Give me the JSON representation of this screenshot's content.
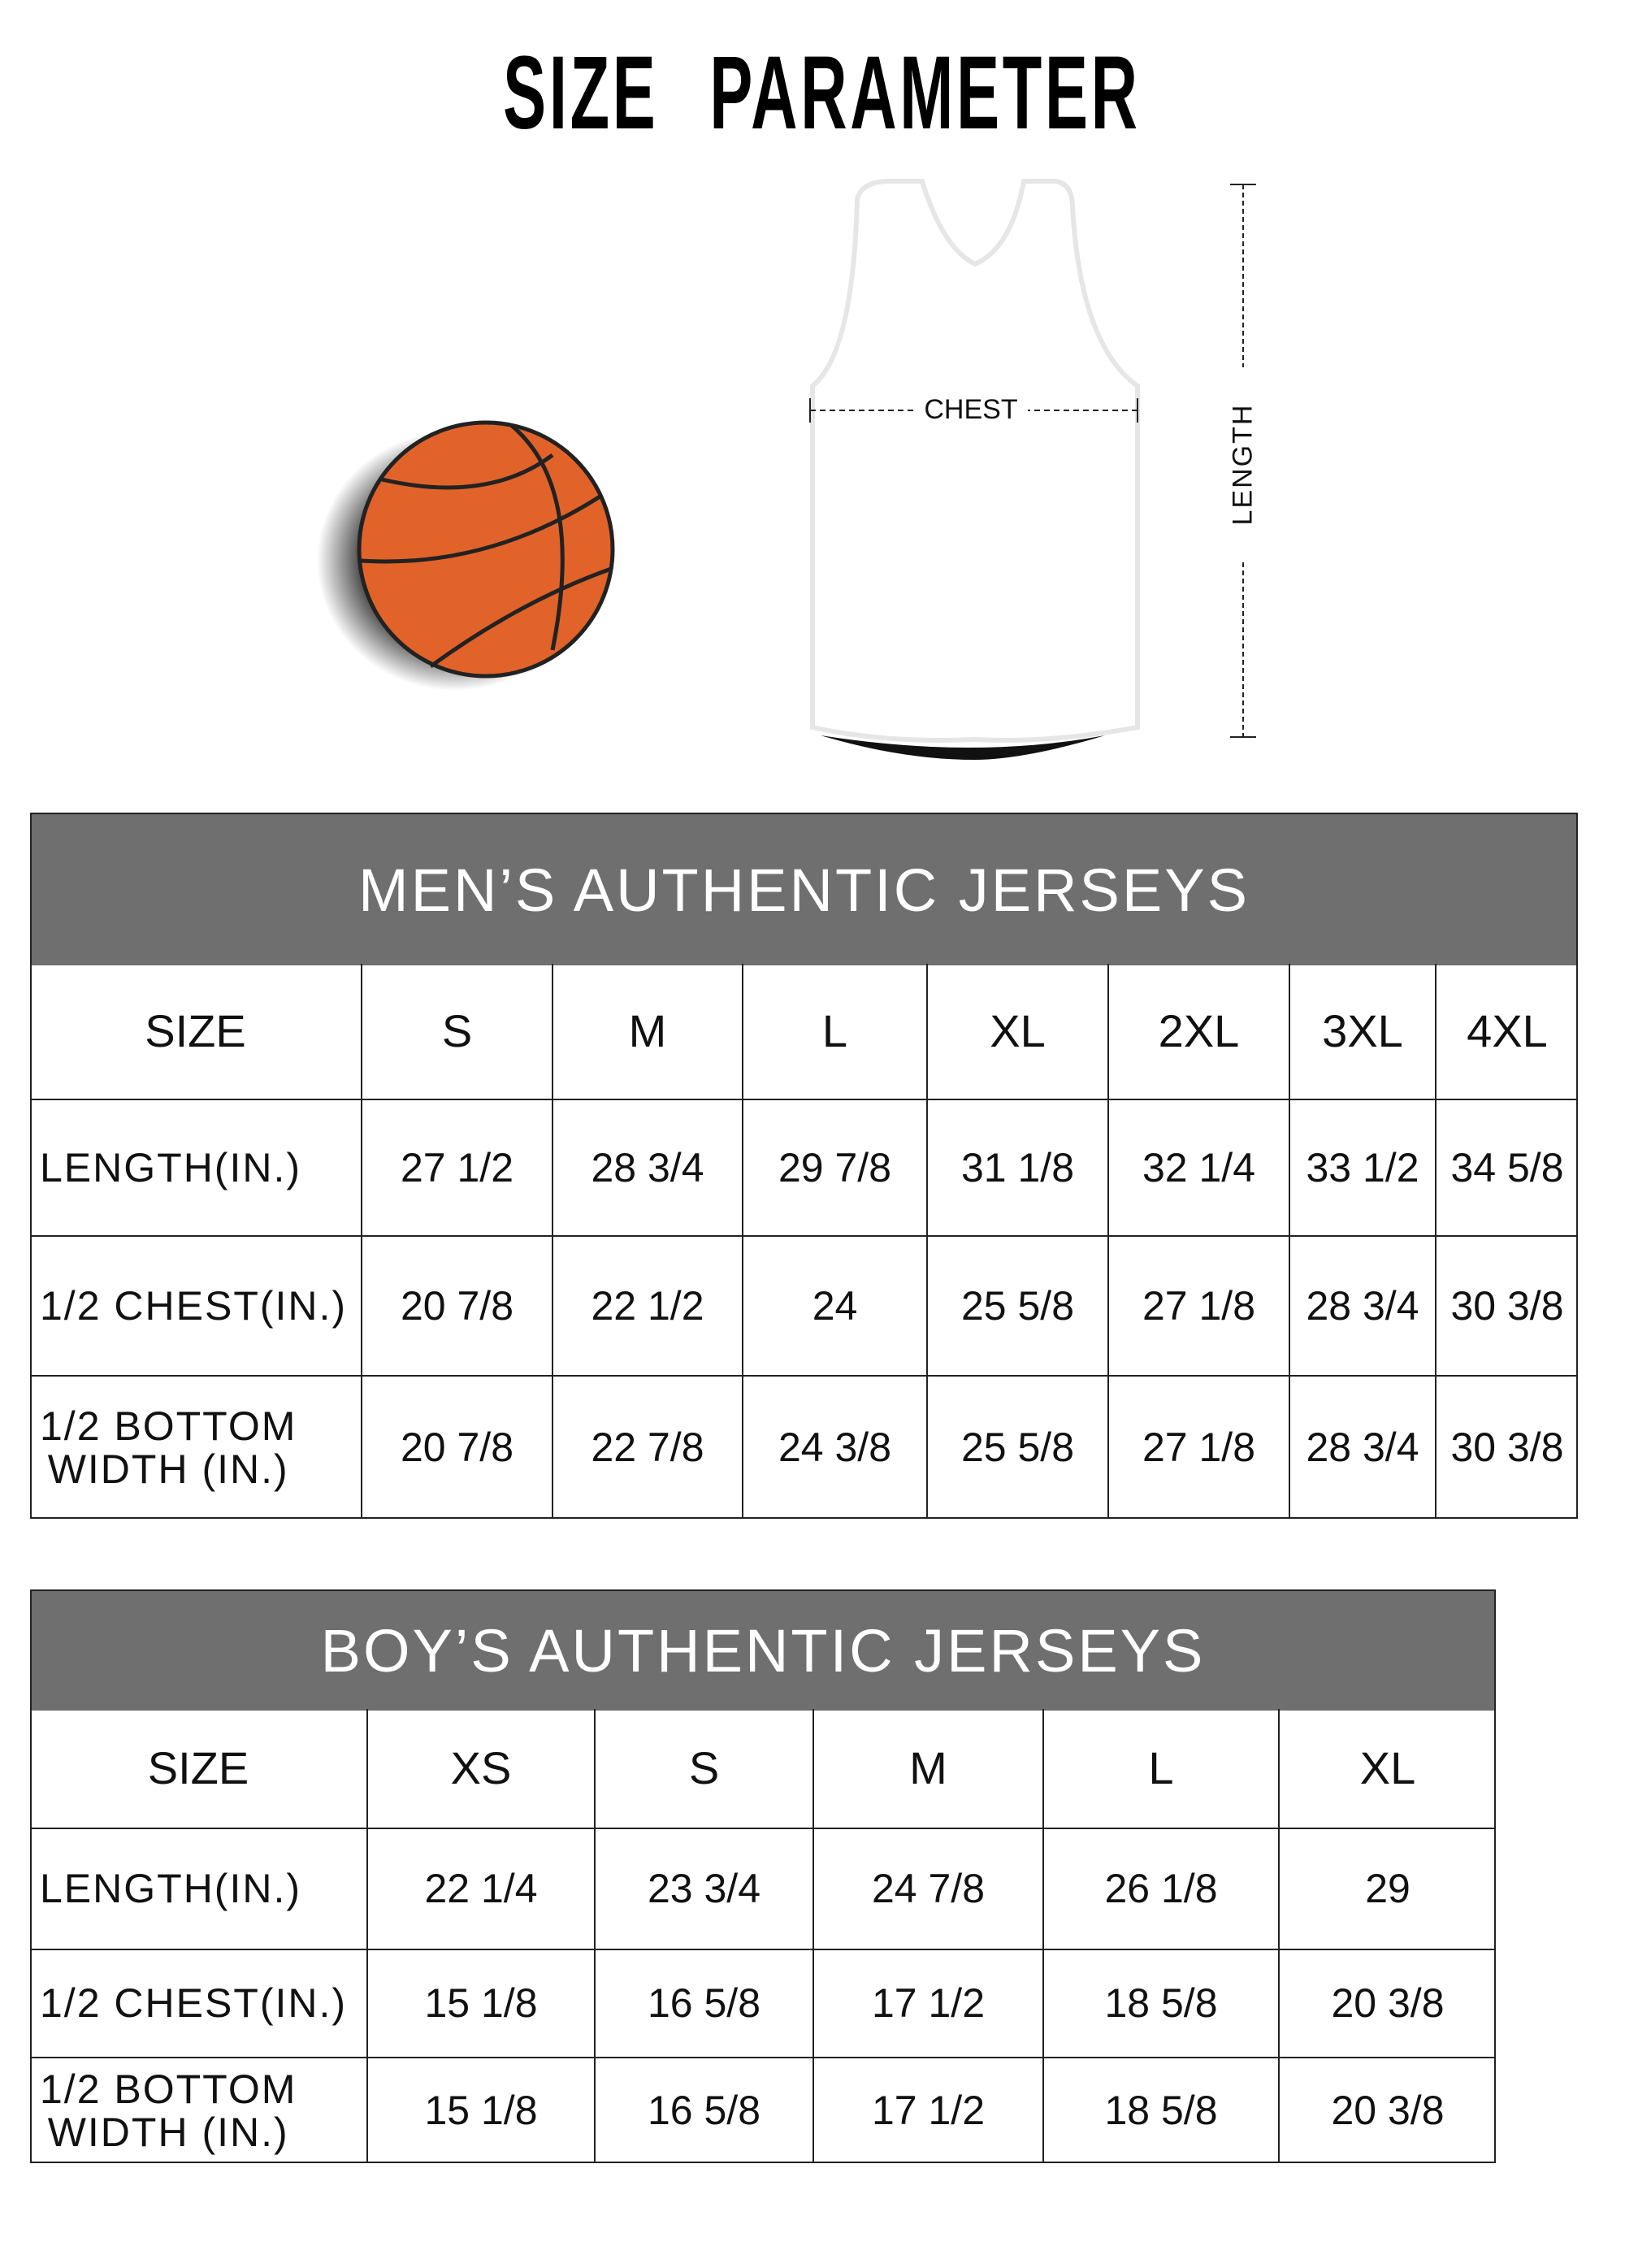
{
  "title": "SIZE  PARAMETER",
  "diagram": {
    "chest_label": "CHEST",
    "length_label": "LENGTH",
    "ball_color": "#e2632a"
  },
  "mens": {
    "heading": "MEN’S AUTHENTIC JERSEYS",
    "header_bg": "#6f6f6f",
    "columns": [
      "SIZE",
      "S",
      "M",
      "L",
      "XL",
      "2XL",
      "3XL",
      "4XL"
    ],
    "rows": [
      [
        "LENGTH(IN.)",
        "27  1/2",
        "28  3/4",
        "29  7/8",
        "31  1/8",
        "32  1/4",
        "33  1/2",
        "34  5/8"
      ],
      [
        "1/2 CHEST(IN.)",
        "20  7/8",
        "22  1/2",
        "24",
        "25  5/8",
        "27  1/8",
        "28  3/4",
        "30  3/8"
      ],
      [
        "1/2 BOTTOM\n WIDTH  (IN.)",
        "20  7/8",
        "22  7/8",
        "24  3/8",
        "25  5/8",
        "27  1/8",
        "28  3/4",
        "30  3/8"
      ]
    ]
  },
  "boys": {
    "heading": "BOY’S AUTHENTIC JERSEYS",
    "header_bg": "#6f6f6f",
    "columns": [
      "SIZE",
      "XS",
      "S",
      "M",
      "L",
      "XL"
    ],
    "rows": [
      [
        "LENGTH(IN.)",
        "22  1/4",
        "23  3/4",
        "24  7/8",
        "26  1/8",
        "29"
      ],
      [
        "1/2 CHEST(IN.)",
        "15  1/8",
        "16  5/8",
        "17  1/2",
        "18  5/8",
        "20  3/8"
      ],
      [
        "1/2 BOTTOM\n WIDTH  (IN.)",
        "15  1/8",
        "16  5/8",
        "17  1/2",
        "18  5/8",
        "20  3/8"
      ]
    ]
  }
}
